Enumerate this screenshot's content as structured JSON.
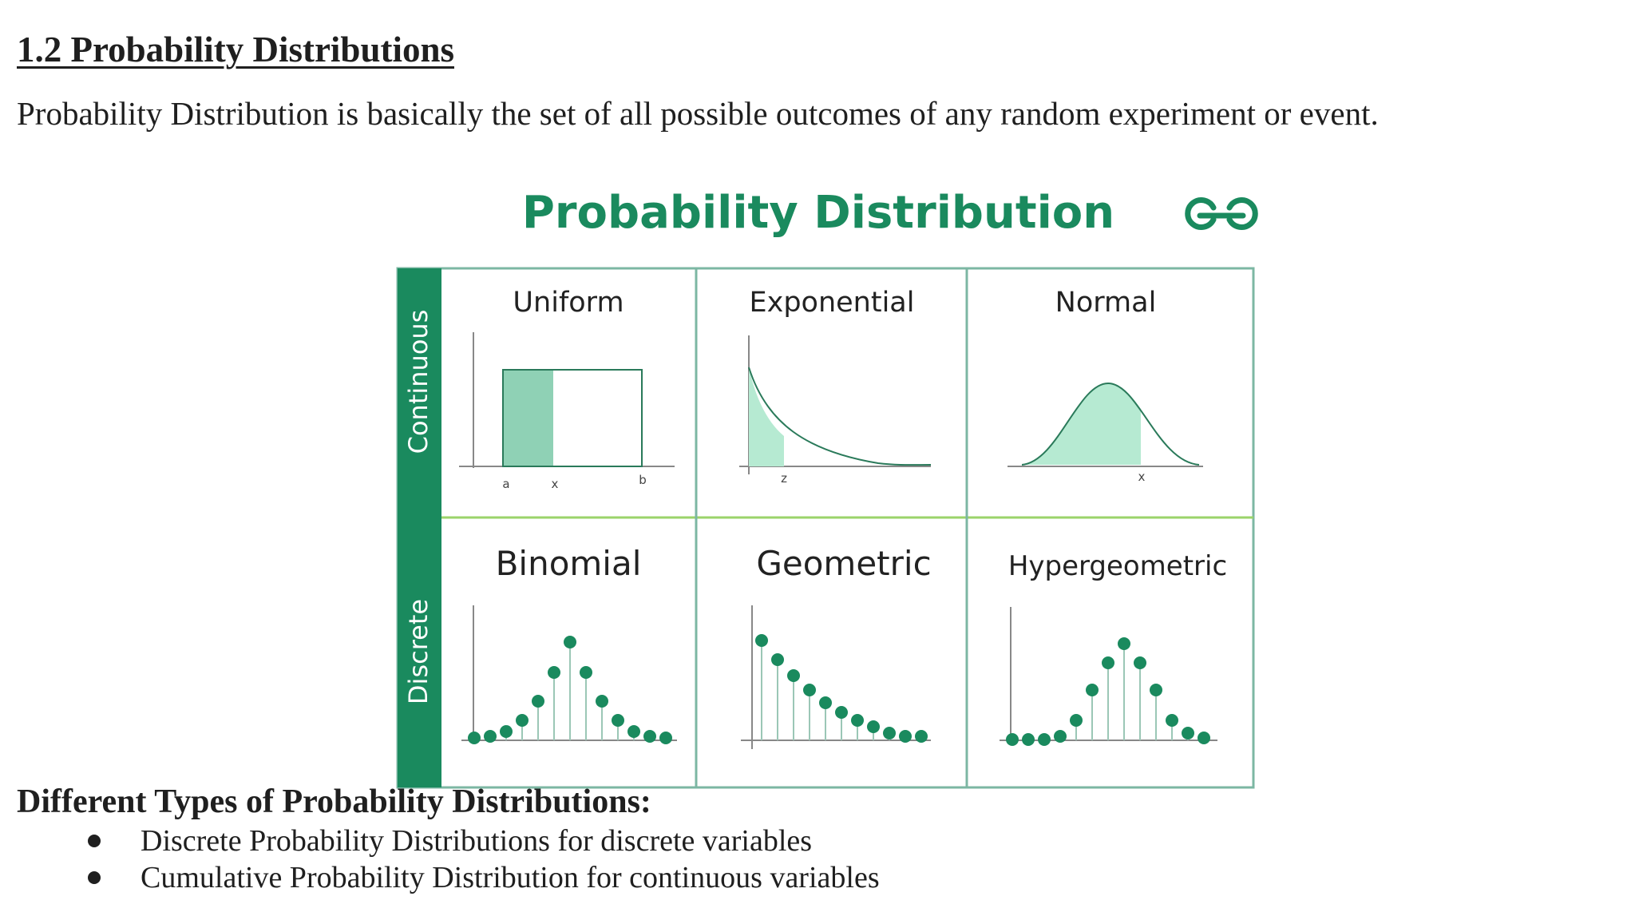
{
  "document": {
    "heading": "1.2 Probability Distributions",
    "intro": "Probability Distribution is basically the set of all possible outcomes of any random experiment or event.",
    "subheading": "Different Types of Probability Distributions:",
    "bullets": [
      "Discrete Probability Distributions for discrete variables",
      "Cumulative Probability Distribution for continuous variables"
    ]
  },
  "figure": {
    "title": "Probability Distribution",
    "logo": "geeksforgeeks-logo",
    "row_labels": [
      "Continuous",
      "Discrete"
    ],
    "cells": {
      "uniform": {
        "label": "Uniform",
        "axis_labels": [
          "a",
          "x",
          "b"
        ]
      },
      "exponential": {
        "label": "Exponential",
        "axis_labels": [
          "z"
        ]
      },
      "normal": {
        "label": "Normal",
        "axis_labels": [
          "x"
        ]
      },
      "binomial": {
        "label": "Binomial"
      },
      "geometric": {
        "label": "Geometric"
      },
      "hypergeometric": {
        "label": "Hypergeometric"
      }
    },
    "colors": {
      "accent": "#1a8a5e",
      "shade": "#8fd1b5",
      "shade_light": "#b6ead2",
      "divider": "#9bd36a",
      "border": "#7cb7a3"
    }
  }
}
